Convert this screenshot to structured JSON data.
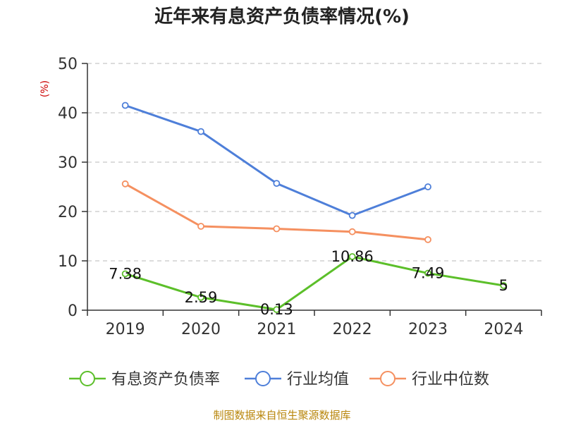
{
  "chart_data": {
    "type": "line",
    "title": "近年来有息资产负债率情况(%)",
    "ylabel": "(%)",
    "xlabel": "",
    "categories": [
      "2019",
      "2020",
      "2021",
      "2022",
      "2023",
      "2024"
    ],
    "ylim": [
      0,
      50
    ],
    "yticks": [
      0,
      10,
      20,
      30,
      40,
      50
    ],
    "grid": true,
    "legend_position": "bottom",
    "series": [
      {
        "name": "有息资产负债率",
        "color": "#5cbf2a",
        "values": [
          7.38,
          2.59,
          0.13,
          10.86,
          7.49,
          5
        ],
        "labels": [
          "7.38",
          "2.59",
          "0.13",
          "10.86",
          "7.49",
          "5"
        ]
      },
      {
        "name": "行业均值",
        "color": "#4e7fd9",
        "values": [
          41.5,
          36.2,
          25.7,
          19.2,
          25.0,
          null
        ]
      },
      {
        "name": "行业中位数",
        "color": "#f59060",
        "values": [
          25.6,
          17.0,
          16.5,
          15.9,
          14.3,
          null
        ]
      }
    ]
  },
  "source": "制图数据来自恒生聚源数据库"
}
